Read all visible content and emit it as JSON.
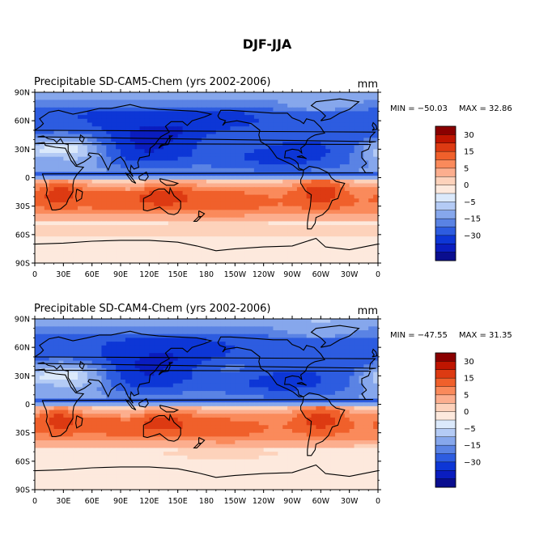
{
  "figure": {
    "title": "DJF-JJA",
    "units": "mm",
    "lat_ticks": [
      "90N",
      "60N",
      "30N",
      "0",
      "30S",
      "60S",
      "90S"
    ],
    "lon_ticks": [
      "0",
      "30E",
      "60E",
      "90E",
      "120E",
      "150E",
      "180",
      "150W",
      "120W",
      "90W",
      "60W",
      "30W",
      "0"
    ],
    "colorbar_labels": [
      "30",
      "15",
      "5",
      "0",
      "-5",
      "-15",
      "-30"
    ],
    "colors": {
      "levels": [
        "#8a0000",
        "#bf1500",
        "#dd3a12",
        "#f0602b",
        "#fa8a5b",
        "#fcae8e",
        "#fdd2bb",
        "#fde9dd",
        "#dbe9fb",
        "#b4cbf5",
        "#86a7ec",
        "#5a83e4",
        "#2d5ce0",
        "#0d36d6",
        "#0a1dbf",
        "#0a0e8f"
      ],
      "coast": "#000000"
    }
  },
  "panels": [
    {
      "title": "Precipitable SD-CAM5-Chem (yrs 2002-2006)",
      "units": "mm",
      "min_label": "MIN = −50.03",
      "max_label": "MAX =  32.86",
      "min": -50.03,
      "max": 32.86
    },
    {
      "title": "Precipitable SD-CAM4-Chem (yrs 2002-2006)",
      "units": "mm",
      "min_label": "MIN = −47.55",
      "max_label": "MAX =  31.35",
      "min": -47.55,
      "max": 31.35
    }
  ]
}
